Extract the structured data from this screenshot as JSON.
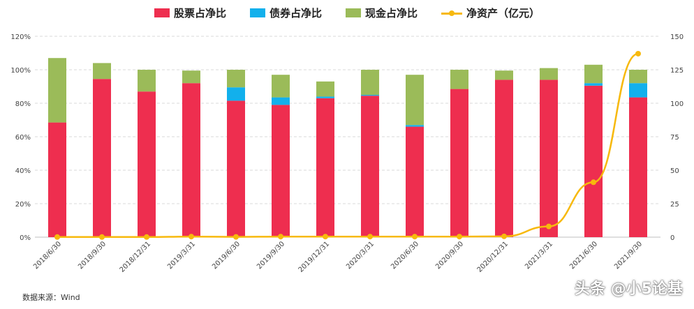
{
  "legend": {
    "stock": "股票占净比",
    "bond": "债券占净比",
    "cash": "现金占净比",
    "nav": "净资产（亿元）"
  },
  "source": "数据来源：Wind",
  "watermark": "头条 @小5论基",
  "colors": {
    "stock": "#ee2e4f",
    "bond": "#12b0ec",
    "cash": "#9bbb59",
    "nav": "#f7b90d",
    "grid": "#d9d9d9"
  },
  "chart_data": {
    "type": "bar",
    "stacked": true,
    "categories": [
      "2018/6/30",
      "2018/9/30",
      "2018/12/31",
      "2019/3/31",
      "2019/6/30",
      "2019/9/30",
      "2019/12/31",
      "2020/3/31",
      "2020/6/30",
      "2020/9/30",
      "2020/12/31",
      "2021/3/31",
      "2021/6/30",
      "2021/9/30"
    ],
    "series": [
      {
        "name": "股票占净比",
        "type": "bar",
        "axis": "left",
        "values": [
          68.5,
          94.5,
          87,
          92,
          81.5,
          79,
          83,
          84.5,
          66,
          88.5,
          94,
          94,
          90.5,
          83.5
        ]
      },
      {
        "name": "债券占净比",
        "type": "bar",
        "axis": "left",
        "values": [
          0,
          0,
          0,
          0,
          8,
          4.5,
          1,
          0.5,
          1,
          0,
          0,
          0,
          1.5,
          8.5
        ]
      },
      {
        "name": "现金占净比",
        "type": "bar",
        "axis": "left",
        "values": [
          38.5,
          9.5,
          13,
          7.5,
          10.5,
          13.5,
          9,
          15,
          30,
          11.5,
          5.5,
          7,
          11,
          8
        ]
      },
      {
        "name": "净资产（亿元）",
        "type": "line",
        "axis": "right",
        "values": [
          0.1,
          0.1,
          0.1,
          0.4,
          0.2,
          0.4,
          0.4,
          0.4,
          0.4,
          0.4,
          0.6,
          8,
          41,
          137
        ]
      }
    ],
    "yLeft": {
      "ticks": [
        "0%",
        "20%",
        "40%",
        "60%",
        "80%",
        "100%",
        "120%"
      ],
      "range": [
        0,
        120
      ]
    },
    "yRight": {
      "ticks": [
        "0",
        "25",
        "50",
        "75",
        "100",
        "125",
        "150"
      ],
      "range": [
        0,
        150
      ]
    },
    "grid": true,
    "legend_position": "top"
  }
}
